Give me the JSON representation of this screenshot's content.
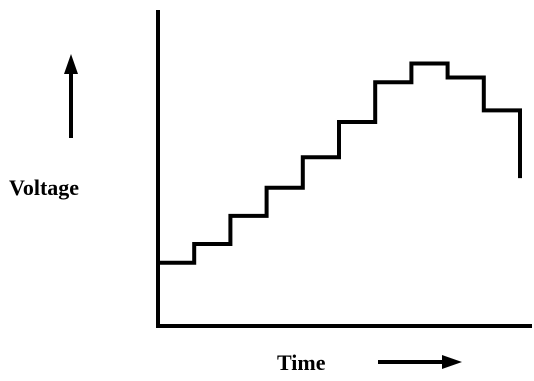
{
  "chart_data": {
    "type": "line",
    "step": true,
    "xlabel": "Time",
    "ylabel": "Voltage",
    "x": [
      0,
      1,
      2,
      3,
      4,
      5,
      6,
      7,
      8,
      9,
      10
    ],
    "y": [
      1.0,
      1.8,
      3.0,
      4.2,
      5.5,
      7.0,
      8.7,
      9.5,
      8.9,
      7.5,
      5.8
    ],
    "xlim": [
      0,
      10
    ],
    "ylim": [
      -1.7,
      10.5
    ],
    "grid": false,
    "legend": "none",
    "axis_arrows": {
      "y": "up-arrow",
      "x": "right-arrow"
    },
    "line_color": "#000000"
  }
}
